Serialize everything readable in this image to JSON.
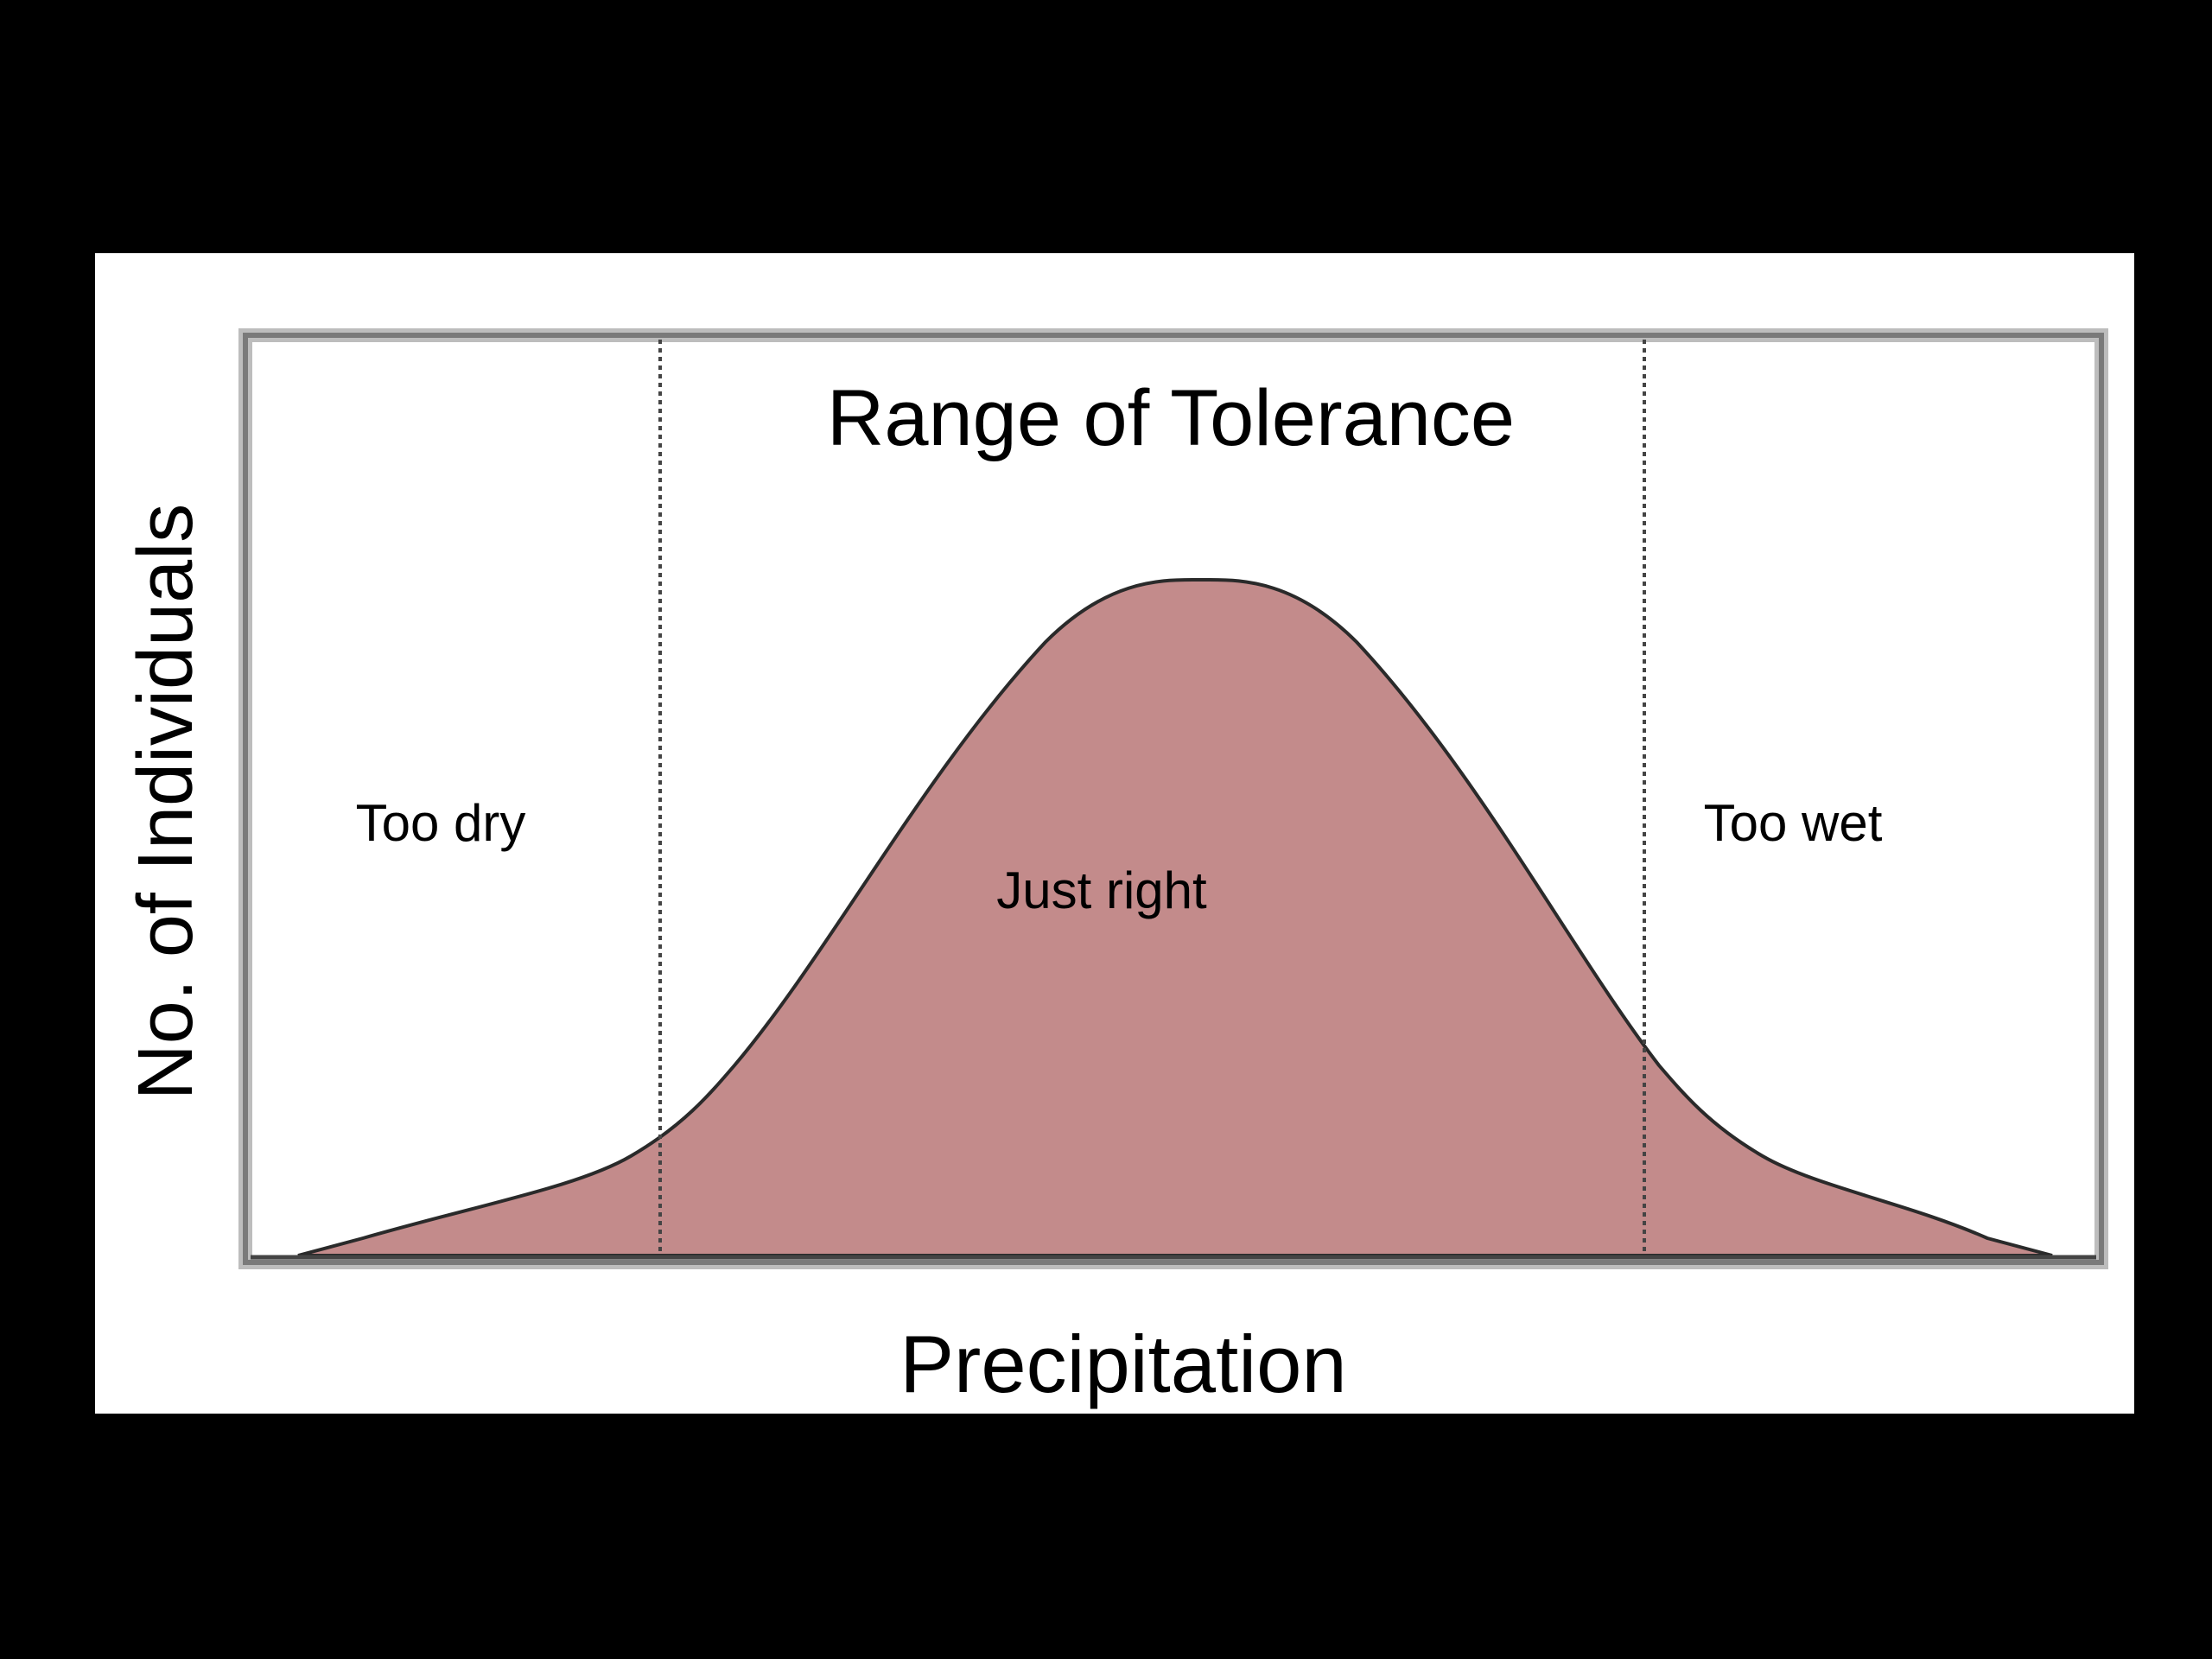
{
  "diagram": {
    "title": "Range of Tolerance",
    "x_axis_label": "Precipitation",
    "y_axis_label": "No. of Individuals",
    "zones": {
      "left": "Too dry",
      "center": "Just right",
      "right": "Too wet"
    },
    "colors": {
      "background": "#000000",
      "panel": "#ffffff",
      "curve_fill": "#c38b8b",
      "curve_stroke": "#2a2a2a",
      "frame": "#8a8a8a",
      "divider": "#444444"
    }
  }
}
